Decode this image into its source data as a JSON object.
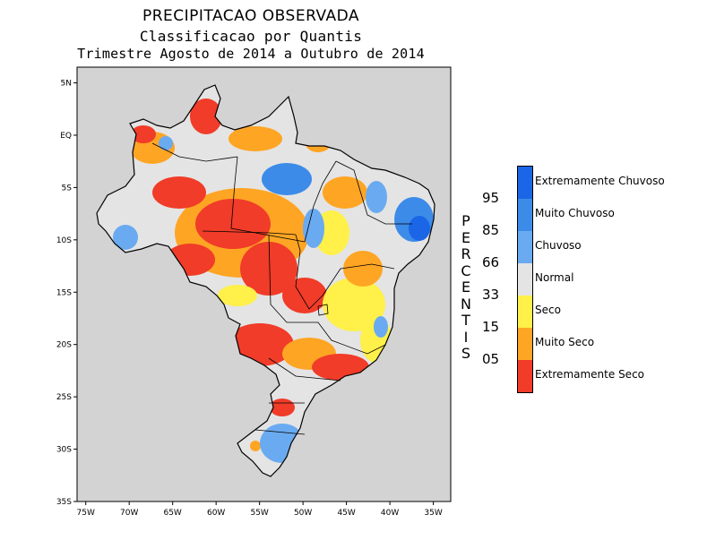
{
  "title": "PRECIPITACAO OBSERVADA",
  "subtitle": "Classificacao por Quantis",
  "period": "Trimestre Agosto de 2014 a Outubro de 2014",
  "axes": {
    "lon_ticks": [
      "75W",
      "70W",
      "65W",
      "60W",
      "55W",
      "50W",
      "45W",
      "40W",
      "35W"
    ],
    "lat_ticks": [
      "5N",
      "EQ",
      "5S",
      "10S",
      "15S",
      "20S",
      "25S",
      "30S",
      "35S"
    ],
    "lon_range": [
      -76,
      -33
    ],
    "lat_range": [
      6.5,
      -35
    ]
  },
  "legend": {
    "axis_label": "PERCENTIS",
    "classes": [
      {
        "label": "Extremamente Chuvoso",
        "color": "#1a66e6"
      },
      {
        "label": "Muito Chuvoso",
        "color": "#3d8be8"
      },
      {
        "label": "Chuvoso",
        "color": "#6aaaf0"
      },
      {
        "label": "Normal",
        "color": "#e4e4e4"
      },
      {
        "label": "Seco",
        "color": "#fff04a"
      },
      {
        "label": "Muito Seco",
        "color": "#ffa524"
      },
      {
        "label": "Extremamente Seco",
        "color": "#f03c28"
      }
    ],
    "percentiles": [
      "95",
      "85",
      "66",
      "33",
      "15",
      "05"
    ]
  },
  "colors": {
    "ocean": "#d3d3d3",
    "border": "#000000"
  }
}
